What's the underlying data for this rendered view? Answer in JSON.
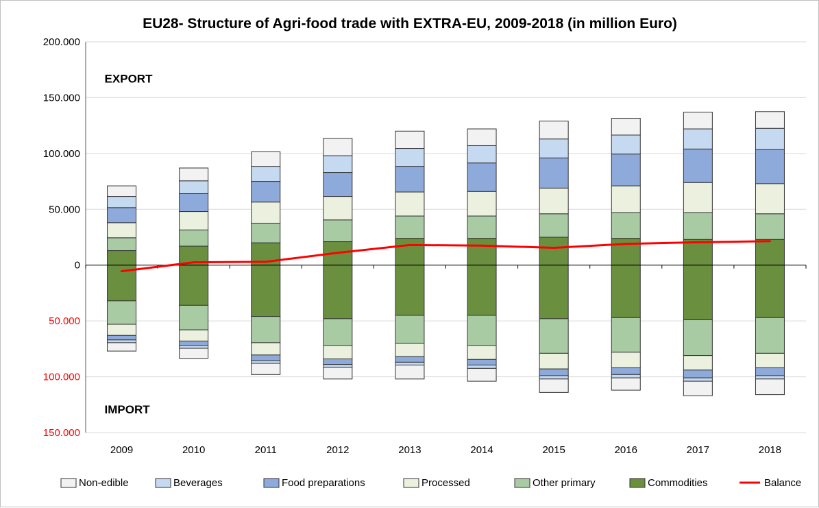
{
  "chart_data": {
    "type": "bar",
    "title": "EU28- Structure of Agri-food trade with EXTRA-EU, 2009-2018 (in million Euro)",
    "categories": [
      "2009",
      "2010",
      "2011",
      "2012",
      "2013",
      "2014",
      "2015",
      "2016",
      "2017",
      "2018"
    ],
    "ylim": [
      -150000,
      200000
    ],
    "y_ticks": [
      {
        "value": 200000,
        "label": "200.000",
        "color": "#000000"
      },
      {
        "value": 150000,
        "label": "150.000",
        "color": "#000000"
      },
      {
        "value": 100000,
        "label": "100.000",
        "color": "#000000"
      },
      {
        "value": 50000,
        "label": "50.000",
        "color": "#000000"
      },
      {
        "value": 0,
        "label": "0",
        "color": "#000000"
      },
      {
        "value": -50000,
        "label": "50.000",
        "color": "#ff0000"
      },
      {
        "value": -100000,
        "label": "100.000",
        "color": "#ff0000"
      },
      {
        "value": -150000,
        "label": "150.000",
        "color": "#ff0000"
      }
    ],
    "grid": true,
    "legend_position": "bottom",
    "annotations": [
      {
        "text": "EXPORT",
        "x_category": "2009",
        "y": 167000
      },
      {
        "text": "IMPORT",
        "x_category": "2009",
        "y": -129000
      }
    ],
    "export": [
      {
        "name": "Commodities",
        "color": "#6a8f3f",
        "values": [
          13000,
          17000,
          20000,
          21000,
          24000,
          24000,
          25000,
          24000,
          23000,
          23000
        ]
      },
      {
        "name": "Other primary",
        "color": "#a9cba3",
        "values": [
          11500,
          14500,
          17500,
          19500,
          20000,
          20000,
          21000,
          23000,
          24000,
          23000
        ]
      },
      {
        "name": "Processed",
        "color": "#ebf1de",
        "values": [
          13500,
          16500,
          19000,
          21000,
          21500,
          22000,
          23000,
          24000,
          27000,
          27000
        ]
      },
      {
        "name": "Food preparations",
        "color": "#8eaadb",
        "values": [
          13500,
          16000,
          18500,
          21500,
          23000,
          25500,
          27000,
          28500,
          30000,
          30500
        ]
      },
      {
        "name": "Beverages",
        "color": "#c5d9f1",
        "values": [
          10000,
          11500,
          13500,
          15000,
          16000,
          15500,
          17000,
          17000,
          18000,
          19000
        ]
      },
      {
        "name": "Non-edible",
        "color": "#f2f2f2",
        "values": [
          9500,
          11500,
          13000,
          15500,
          15500,
          15000,
          16000,
          15000,
          15000,
          15000
        ]
      }
    ],
    "import": [
      {
        "name": "Commodities",
        "color": "#6a8f3f",
        "values": [
          32000,
          36000,
          46000,
          48000,
          45000,
          45000,
          48000,
          47000,
          49000,
          47000
        ]
      },
      {
        "name": "Other primary",
        "color": "#a9cba3",
        "values": [
          21000,
          22000,
          23500,
          24000,
          25000,
          27000,
          31000,
          31000,
          32000,
          32000
        ]
      },
      {
        "name": "Processed",
        "color": "#ebf1de",
        "values": [
          10000,
          10000,
          11000,
          12000,
          12000,
          12500,
          14000,
          14000,
          13000,
          13000
        ]
      },
      {
        "name": "Food preparations",
        "color": "#8eaadb",
        "values": [
          4000,
          4000,
          5000,
          5000,
          5000,
          5000,
          6000,
          6000,
          7000,
          7000
        ]
      },
      {
        "name": "Beverages",
        "color": "#c5d9f1",
        "values": [
          2500,
          2500,
          2500,
          2500,
          2500,
          3000,
          3000,
          3000,
          3000,
          3000
        ]
      },
      {
        "name": "Non-edible",
        "color": "#f2f2f2",
        "values": [
          7500,
          9000,
          10000,
          10500,
          12500,
          11500,
          12000,
          11000,
          13000,
          14000
        ]
      }
    ],
    "balance": {
      "name": "Balance",
      "color": "#ff0000",
      "values": [
        -5500,
        2500,
        3000,
        11000,
        18000,
        17500,
        15500,
        19000,
        20500,
        21500
      ]
    },
    "legend": [
      {
        "name": "Non-edible",
        "color": "#f2f2f2",
        "kind": "box"
      },
      {
        "name": "Beverages",
        "color": "#c5d9f1",
        "kind": "box"
      },
      {
        "name": "Food preparations",
        "color": "#8eaadb",
        "kind": "box"
      },
      {
        "name": "Processed",
        "color": "#ebf1de",
        "kind": "box"
      },
      {
        "name": "Other primary",
        "color": "#a9cba3",
        "kind": "box"
      },
      {
        "name": "Commodities",
        "color": "#6a8f3f",
        "kind": "box"
      },
      {
        "name": "Balance",
        "color": "#ff0000",
        "kind": "line"
      }
    ]
  }
}
